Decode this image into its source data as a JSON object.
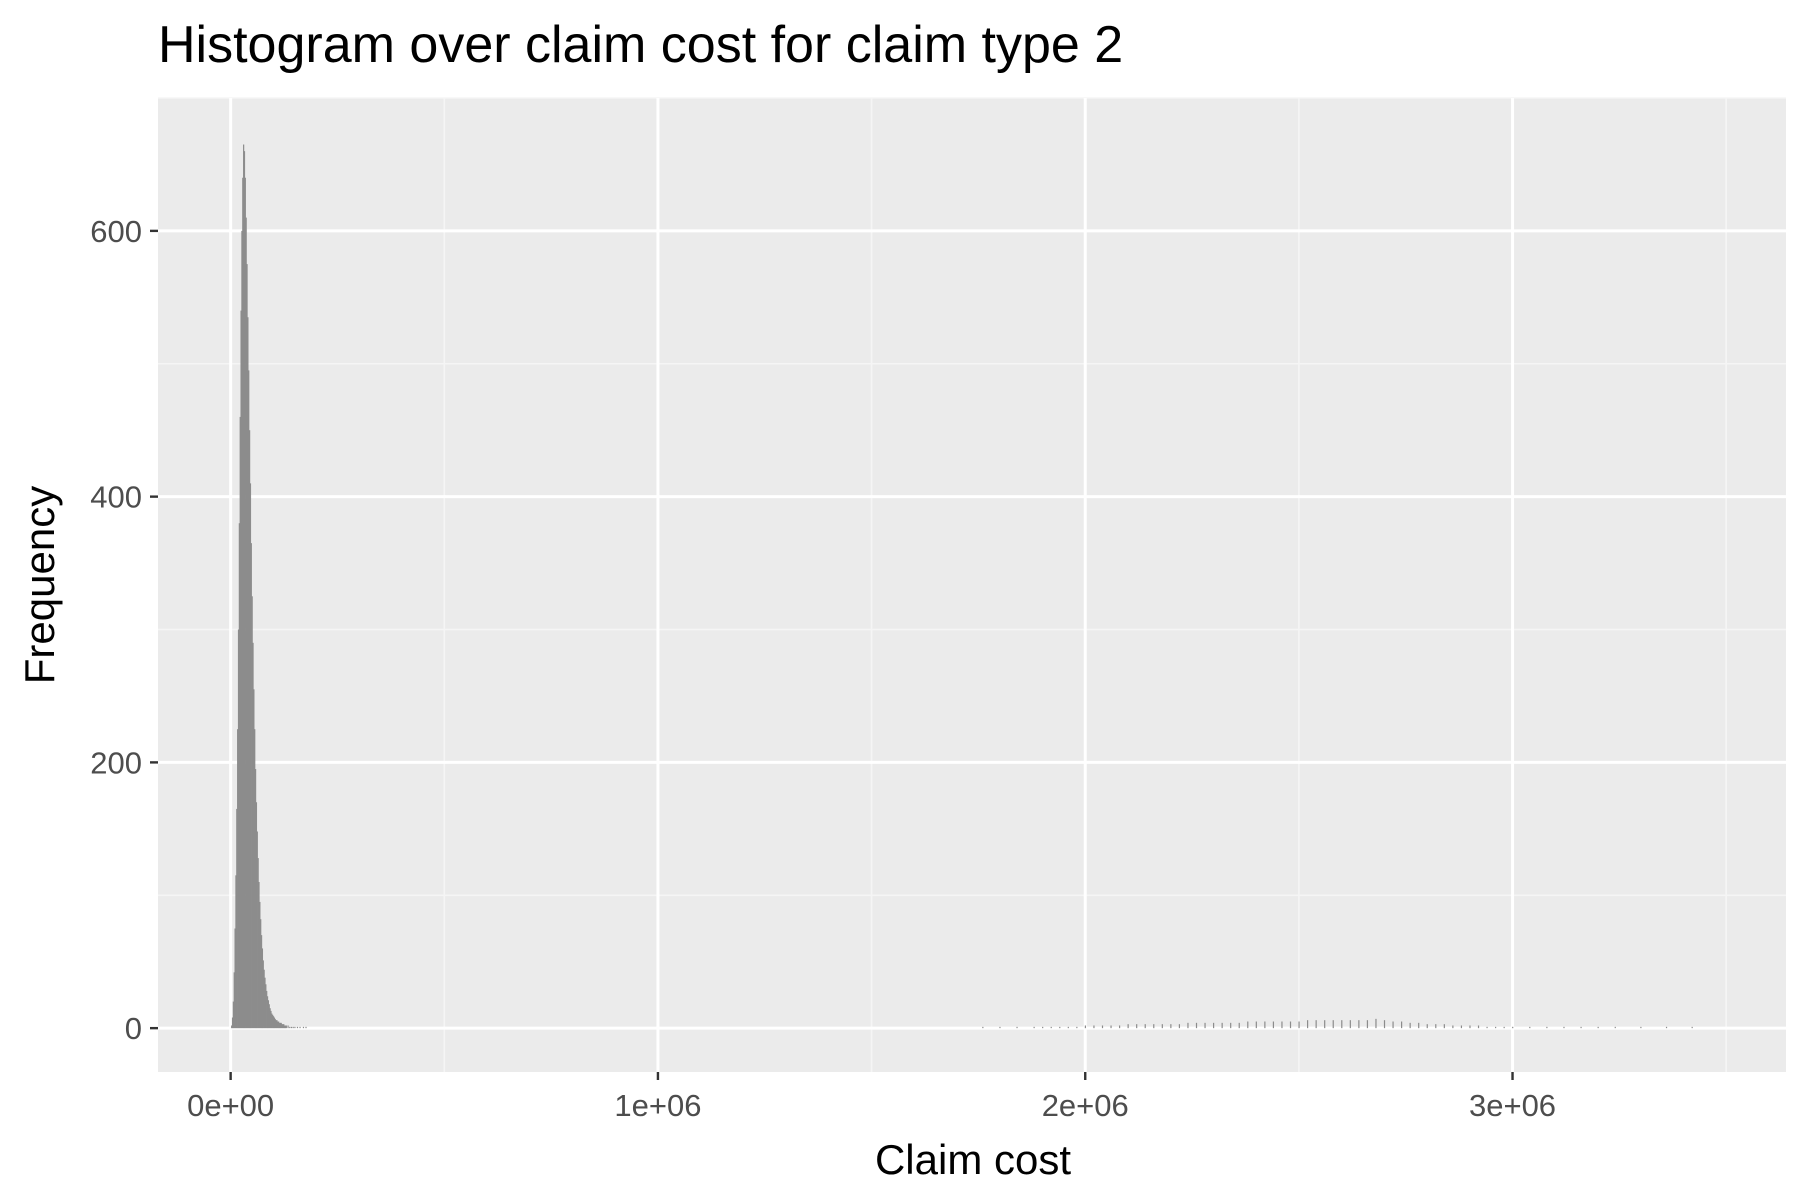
{
  "chart_data": {
    "type": "bar",
    "title": "Histogram over claim cost for claim type 2",
    "xlabel": "Claim cost",
    "ylabel": "Frequency",
    "xlim": [
      -170000,
      3640000
    ],
    "ylim": [
      -33,
      700
    ],
    "x_ticks": [
      {
        "value": 0,
        "label": "0e+00"
      },
      {
        "value": 1000000,
        "label": "1e+06"
      },
      {
        "value": 2000000,
        "label": "2e+06"
      },
      {
        "value": 3000000,
        "label": "3e+06"
      }
    ],
    "y_ticks": [
      {
        "value": 0,
        "label": "0"
      },
      {
        "value": 200,
        "label": "200"
      },
      {
        "value": 400,
        "label": "400"
      },
      {
        "value": 600,
        "label": "600"
      }
    ],
    "grid": true,
    "legend": "none",
    "colors": {
      "panel_background": "#ebebeb",
      "grid_major": "#ffffff",
      "grid_minor": "#f5f5f5",
      "bar_fill": "#8c8c8c",
      "tick_mark": "#333333"
    },
    "series": [
      {
        "bin_width": 2000,
        "bins": [
          [
            2000,
            2
          ],
          [
            4000,
            8
          ],
          [
            6000,
            20
          ],
          [
            8000,
            42
          ],
          [
            10000,
            75
          ],
          [
            12000,
            115
          ],
          [
            14000,
            165
          ],
          [
            16000,
            225
          ],
          [
            18000,
            300
          ],
          [
            20000,
            380
          ],
          [
            22000,
            460
          ],
          [
            24000,
            540
          ],
          [
            26000,
            600
          ],
          [
            28000,
            640
          ],
          [
            30000,
            665
          ],
          [
            32000,
            660
          ],
          [
            34000,
            640
          ],
          [
            36000,
            610
          ],
          [
            38000,
            575
          ],
          [
            40000,
            535
          ],
          [
            42000,
            495
          ],
          [
            44000,
            450
          ],
          [
            46000,
            410
          ],
          [
            48000,
            365
          ],
          [
            50000,
            325
          ],
          [
            52000,
            290
          ],
          [
            54000,
            255
          ],
          [
            56000,
            225
          ],
          [
            58000,
            195
          ],
          [
            60000,
            170
          ],
          [
            62000,
            148
          ],
          [
            64000,
            128
          ],
          [
            66000,
            110
          ],
          [
            68000,
            95
          ],
          [
            70000,
            82
          ],
          [
            72000,
            70
          ],
          [
            74000,
            60
          ],
          [
            76000,
            51
          ],
          [
            78000,
            44
          ],
          [
            80000,
            38
          ],
          [
            82000,
            33
          ],
          [
            84000,
            28
          ],
          [
            86000,
            24
          ],
          [
            88000,
            21
          ],
          [
            90000,
            18
          ],
          [
            92000,
            15
          ],
          [
            94000,
            13
          ],
          [
            96000,
            11
          ],
          [
            98000,
            10
          ],
          [
            100000,
            9
          ],
          [
            102000,
            8
          ],
          [
            104000,
            7
          ],
          [
            106000,
            6
          ],
          [
            108000,
            6
          ],
          [
            110000,
            5
          ],
          [
            112000,
            5
          ],
          [
            114000,
            4
          ],
          [
            116000,
            4
          ],
          [
            118000,
            4
          ],
          [
            120000,
            3
          ],
          [
            122000,
            3
          ],
          [
            124000,
            3
          ],
          [
            126000,
            2
          ],
          [
            128000,
            2
          ],
          [
            130000,
            2
          ],
          [
            134000,
            2
          ],
          [
            138000,
            1
          ],
          [
            142000,
            1
          ],
          [
            146000,
            1
          ],
          [
            150000,
            1
          ],
          [
            156000,
            1
          ],
          [
            162000,
            1
          ],
          [
            170000,
            1
          ],
          [
            176000,
            1
          ],
          [
            1760000,
            1
          ],
          [
            1800000,
            1
          ],
          [
            1840000,
            1
          ],
          [
            1880000,
            1
          ],
          [
            1900000,
            1
          ],
          [
            1920000,
            1
          ],
          [
            1940000,
            1
          ],
          [
            1960000,
            1
          ],
          [
            1980000,
            1
          ],
          [
            2000000,
            2
          ],
          [
            2020000,
            2
          ],
          [
            2040000,
            2
          ],
          [
            2060000,
            2
          ],
          [
            2080000,
            2
          ],
          [
            2100000,
            3
          ],
          [
            2120000,
            3
          ],
          [
            2140000,
            3
          ],
          [
            2160000,
            3
          ],
          [
            2180000,
            3
          ],
          [
            2200000,
            3
          ],
          [
            2220000,
            3
          ],
          [
            2240000,
            4
          ],
          [
            2260000,
            4
          ],
          [
            2280000,
            4
          ],
          [
            2300000,
            4
          ],
          [
            2320000,
            4
          ],
          [
            2340000,
            4
          ],
          [
            2360000,
            4
          ],
          [
            2380000,
            5
          ],
          [
            2400000,
            5
          ],
          [
            2420000,
            5
          ],
          [
            2440000,
            5
          ],
          [
            2460000,
            5
          ],
          [
            2480000,
            5
          ],
          [
            2500000,
            5
          ],
          [
            2520000,
            6
          ],
          [
            2540000,
            6
          ],
          [
            2560000,
            6
          ],
          [
            2580000,
            6
          ],
          [
            2600000,
            6
          ],
          [
            2620000,
            6
          ],
          [
            2640000,
            6
          ],
          [
            2660000,
            6
          ],
          [
            2680000,
            7
          ],
          [
            2700000,
            6
          ],
          [
            2720000,
            5
          ],
          [
            2740000,
            5
          ],
          [
            2760000,
            4
          ],
          [
            2780000,
            4
          ],
          [
            2800000,
            3
          ],
          [
            2820000,
            3
          ],
          [
            2840000,
            3
          ],
          [
            2860000,
            2
          ],
          [
            2880000,
            2
          ],
          [
            2900000,
            2
          ],
          [
            2920000,
            2
          ],
          [
            2940000,
            1
          ],
          [
            2960000,
            1
          ],
          [
            2980000,
            1
          ],
          [
            3000000,
            1
          ],
          [
            3040000,
            1
          ],
          [
            3080000,
            1
          ],
          [
            3120000,
            1
          ],
          [
            3160000,
            1
          ],
          [
            3200000,
            1
          ],
          [
            3240000,
            1
          ],
          [
            3300000,
            1
          ],
          [
            3360000,
            1
          ],
          [
            3420000,
            1
          ]
        ]
      }
    ]
  }
}
